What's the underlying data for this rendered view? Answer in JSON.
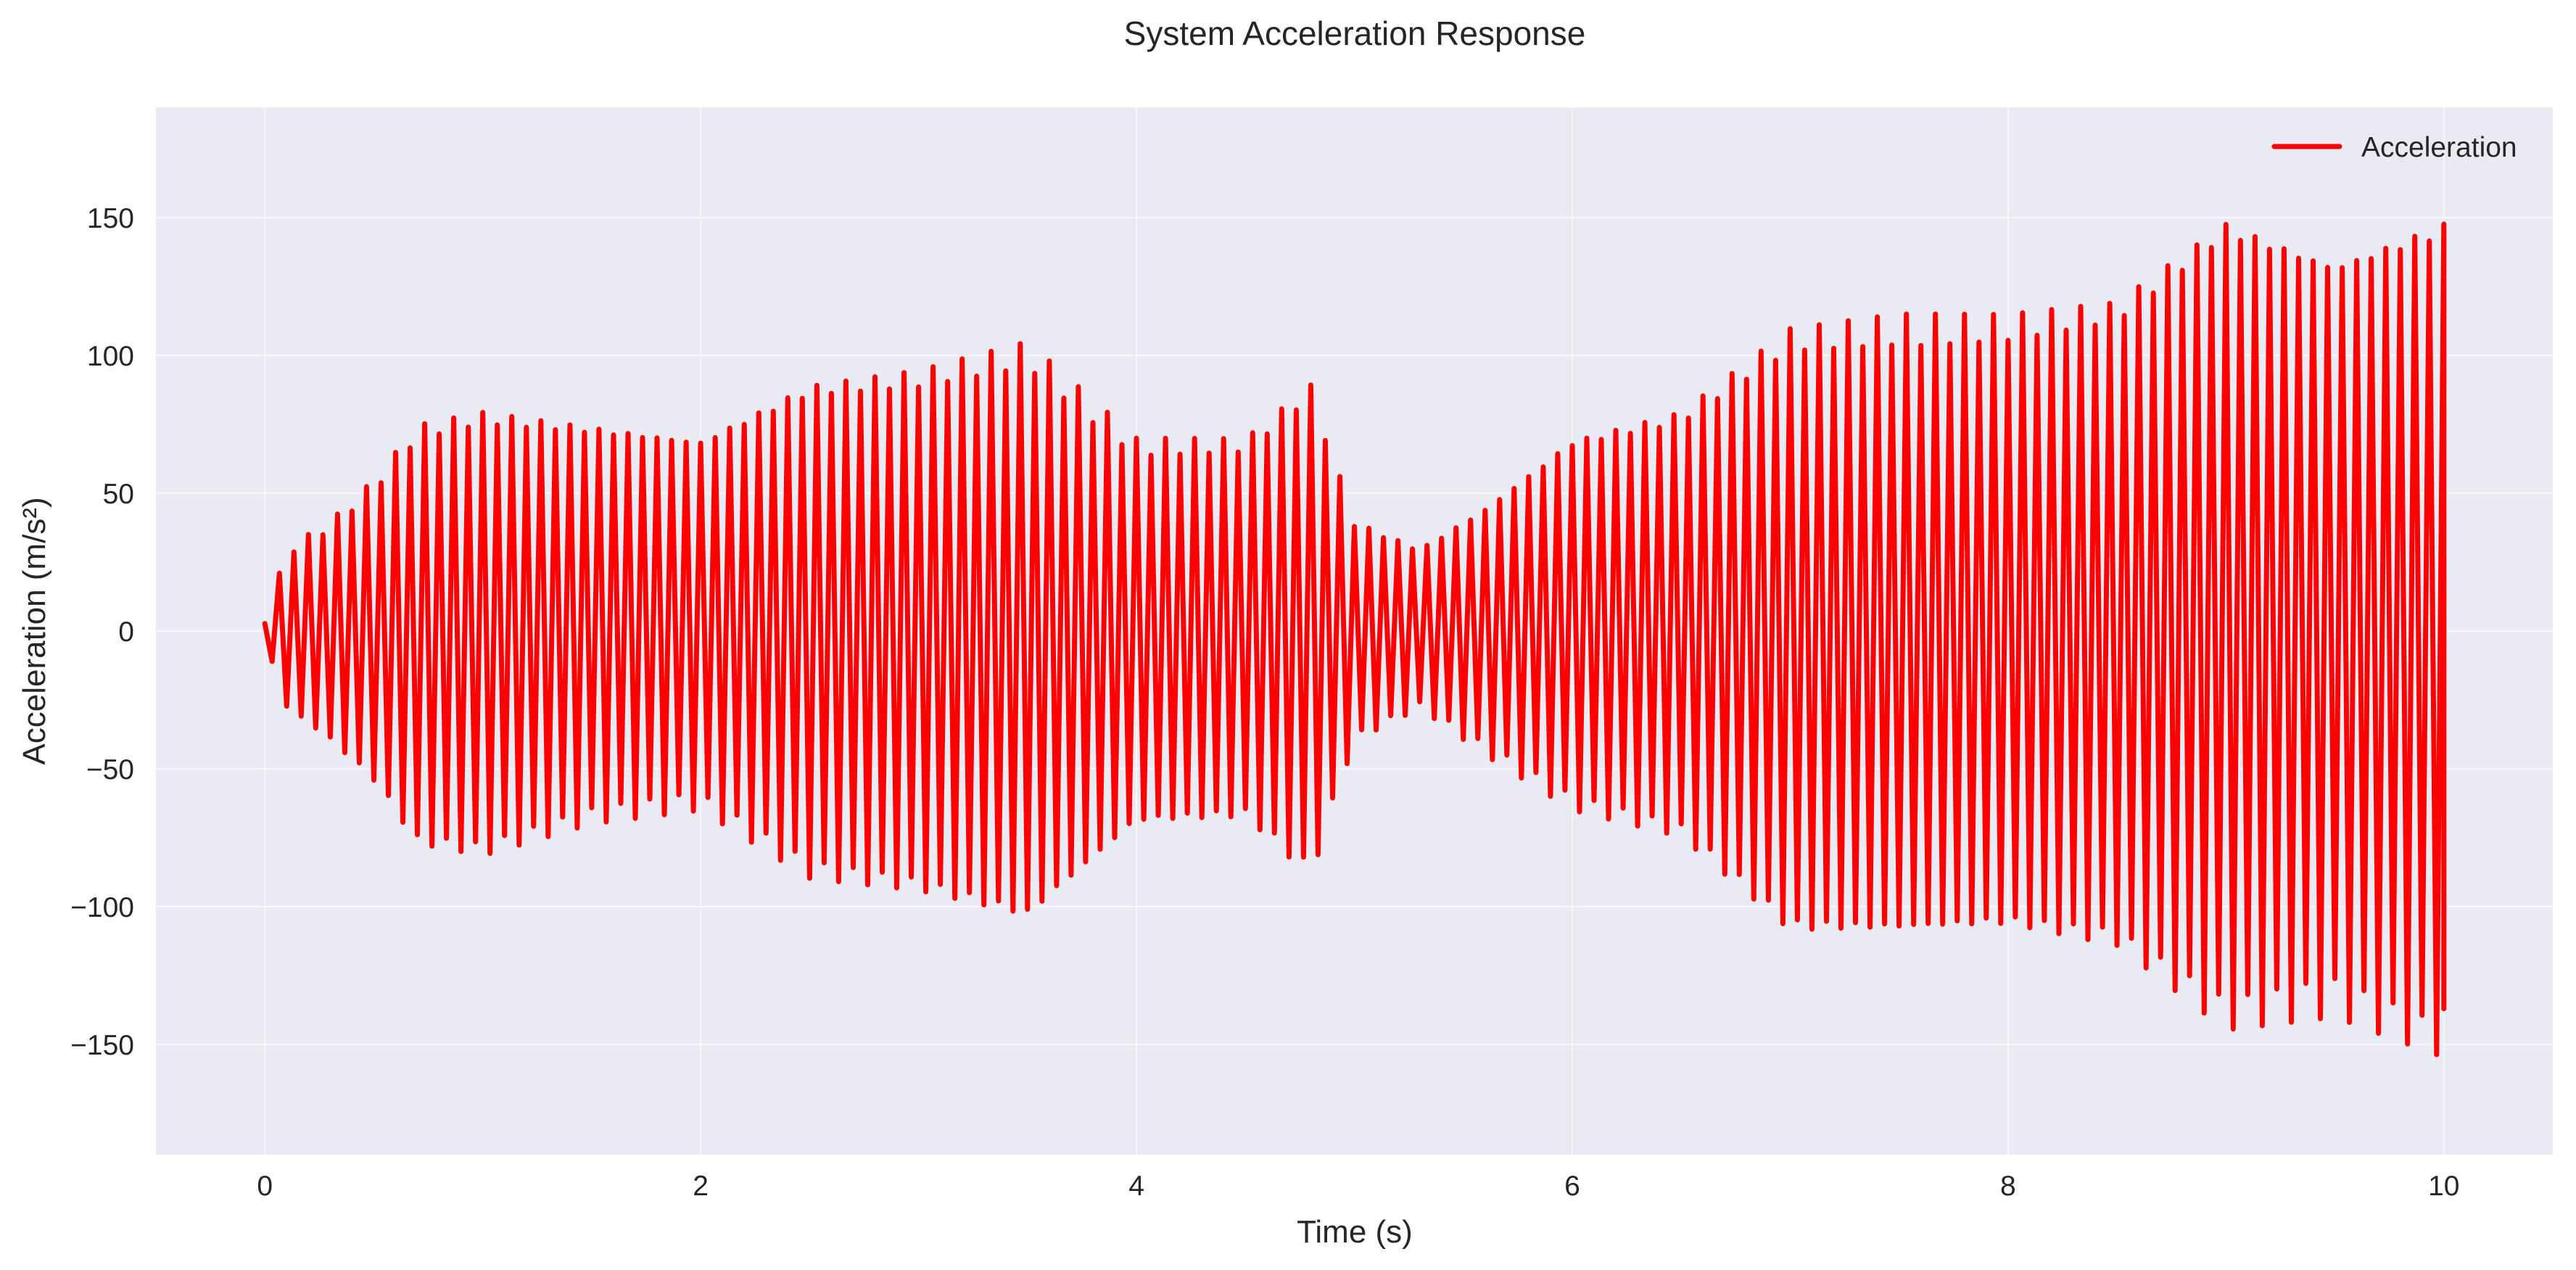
{
  "chart_data": {
    "type": "line",
    "title": "System Acceleration Response",
    "xlabel": "Time (s)",
    "ylabel": "Acceleration (m/s²)",
    "xlim": [
      -0.5,
      10.5
    ],
    "ylim": [
      -190,
      190
    ],
    "xticks": [
      0,
      2,
      4,
      6,
      8,
      10
    ],
    "xtick_labels": [
      "0",
      "2",
      "4",
      "6",
      "8",
      "10"
    ],
    "yticks": [
      -150,
      -100,
      -50,
      0,
      50,
      100,
      150
    ],
    "ytick_labels": [
      "−150",
      "−100",
      "−50",
      "0",
      "50",
      "100",
      "150"
    ],
    "grid": true,
    "legend": {
      "position": "top-right",
      "entries": [
        "Acceleration"
      ]
    },
    "series": [
      {
        "name": "Acceleration",
        "color": "#ff0000",
        "envelope": {
          "t": [
            0,
            0.1,
            0.3,
            0.5,
            0.7,
            1.0,
            1.5,
            2.0,
            2.5,
            3.0,
            3.5,
            4.0,
            4.5,
            4.8,
            5.0,
            5.3,
            5.6,
            6.0,
            6.5,
            7.0,
            7.5,
            8.0,
            8.5,
            9.0,
            9.5,
            10.0
          ],
          "upper": [
            3,
            30,
            40,
            55,
            75,
            80,
            75,
            70,
            90,
            95,
            105,
            70,
            70,
            90,
            40,
            30,
            45,
            70,
            80,
            110,
            115,
            115,
            120,
            150,
            135,
            150
          ],
          "lower": [
            -3,
            -28,
            -40,
            -55,
            -78,
            -82,
            -70,
            -65,
            -90,
            -95,
            -105,
            -70,
            -68,
            -90,
            -40,
            -28,
            -45,
            -65,
            -75,
            -110,
            -110,
            -108,
            -115,
            -145,
            -140,
            -155
          ]
        },
        "oscillation_hz": 15,
        "t_end": 10.0,
        "end_value": -137
      }
    ]
  }
}
